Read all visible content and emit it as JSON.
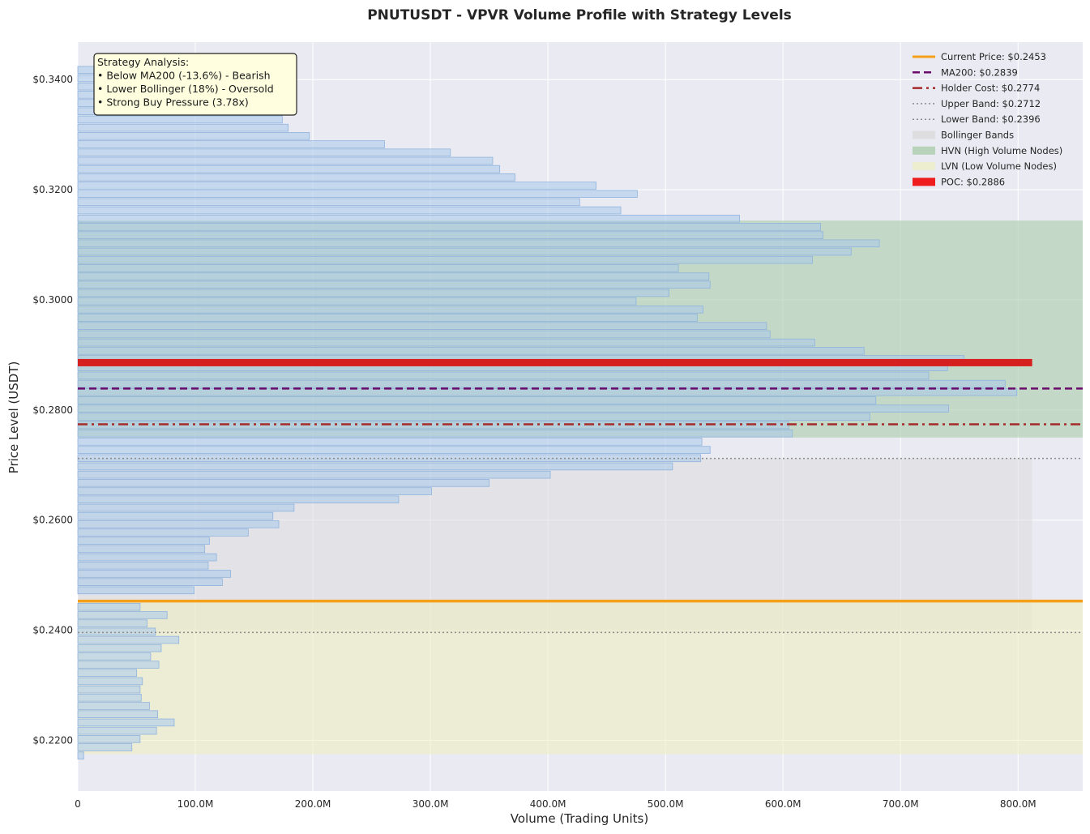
{
  "chart_data": {
    "type": "bar",
    "orientation": "horizontal",
    "title": "PNUTUSDT - VPVR Volume Profile with Strategy Levels",
    "xlabel": "Volume (Trading Units)",
    "ylabel": "Price Level (USDT)",
    "xlim": [
      0,
      855000000
    ],
    "ylim": [
      0.2108,
      0.3468
    ],
    "x_ticks": [
      {
        "value": 0,
        "label": "0"
      },
      {
        "value": 100000000,
        "label": "100.0M"
      },
      {
        "value": 200000000,
        "label": "200.0M"
      },
      {
        "value": 300000000,
        "label": "300.0M"
      },
      {
        "value": 400000000,
        "label": "400.0M"
      },
      {
        "value": 500000000,
        "label": "500.0M"
      },
      {
        "value": 600000000,
        "label": "600.0M"
      },
      {
        "value": 700000000,
        "label": "700.0M"
      },
      {
        "value": 800000000,
        "label": "800.0M"
      }
    ],
    "y_ticks": [
      {
        "value": 0.22,
        "label": "$0.2200"
      },
      {
        "value": 0.24,
        "label": "$0.2400"
      },
      {
        "value": 0.26,
        "label": "$0.2600"
      },
      {
        "value": 0.28,
        "label": "$0.2800"
      },
      {
        "value": 0.3,
        "label": "$0.3000"
      },
      {
        "value": 0.32,
        "label": "$0.3200"
      },
      {
        "value": 0.34,
        "label": "$0.3400"
      }
    ],
    "grid": true,
    "bins": [
      {
        "price": 0.21725,
        "volume": 5000000
      },
      {
        "price": 0.21875,
        "volume": 46000000
      },
      {
        "price": 0.22025,
        "volume": 53000000
      },
      {
        "price": 0.22175,
        "volume": 67000000
      },
      {
        "price": 0.22325,
        "volume": 82000000
      },
      {
        "price": 0.22475,
        "volume": 68000000
      },
      {
        "price": 0.22625,
        "volume": 61000000
      },
      {
        "price": 0.22775,
        "volume": 54000000
      },
      {
        "price": 0.22925,
        "volume": 53000000
      },
      {
        "price": 0.23075,
        "volume": 55000000
      },
      {
        "price": 0.23225,
        "volume": 50000000
      },
      {
        "price": 0.23375,
        "volume": 69000000
      },
      {
        "price": 0.23525,
        "volume": 62000000
      },
      {
        "price": 0.23675,
        "volume": 71000000
      },
      {
        "price": 0.23825,
        "volume": 86000000
      },
      {
        "price": 0.23975,
        "volume": 66000000
      },
      {
        "price": 0.24125,
        "volume": 59000000
      },
      {
        "price": 0.24275,
        "volume": 76000000
      },
      {
        "price": 0.24425,
        "volume": 53000000
      },
      {
        "price": 0.24575,
        "volume": 0
      },
      {
        "price": 0.24725,
        "volume": 99000000
      },
      {
        "price": 0.24875,
        "volume": 123000000
      },
      {
        "price": 0.25025,
        "volume": 130000000
      },
      {
        "price": 0.25175,
        "volume": 111000000
      },
      {
        "price": 0.25325,
        "volume": 118000000
      },
      {
        "price": 0.25475,
        "volume": 108000000
      },
      {
        "price": 0.25625,
        "volume": 112000000
      },
      {
        "price": 0.25775,
        "volume": 145000000
      },
      {
        "price": 0.25925,
        "volume": 171000000
      },
      {
        "price": 0.26075,
        "volume": 166000000
      },
      {
        "price": 0.26225,
        "volume": 184000000
      },
      {
        "price": 0.26375,
        "volume": 273000000
      },
      {
        "price": 0.26525,
        "volume": 301000000
      },
      {
        "price": 0.26675,
        "volume": 350000000
      },
      {
        "price": 0.26825,
        "volume": 402000000
      },
      {
        "price": 0.26975,
        "volume": 506000000
      },
      {
        "price": 0.27125,
        "volume": 530000000
      },
      {
        "price": 0.27275,
        "volume": 538000000
      },
      {
        "price": 0.27425,
        "volume": 531000000
      },
      {
        "price": 0.27575,
        "volume": 608000000
      },
      {
        "price": 0.27725,
        "volume": 605000000
      },
      {
        "price": 0.27875,
        "volume": 674000000
      },
      {
        "price": 0.28025,
        "volume": 741000000
      },
      {
        "price": 0.28175,
        "volume": 679000000
      },
      {
        "price": 0.28325,
        "volume": 799000000
      },
      {
        "price": 0.28475,
        "volume": 789000000
      },
      {
        "price": 0.28625,
        "volume": 724000000
      },
      {
        "price": 0.28775,
        "volume": 740000000
      },
      {
        "price": 0.28925,
        "volume": 754000000
      },
      {
        "price": 0.29075,
        "volume": 669000000
      },
      {
        "price": 0.29225,
        "volume": 627000000
      },
      {
        "price": 0.29375,
        "volume": 589000000
      },
      {
        "price": 0.29525,
        "volume": 586000000
      },
      {
        "price": 0.29675,
        "volume": 527000000
      },
      {
        "price": 0.29825,
        "volume": 532000000
      },
      {
        "price": 0.29975,
        "volume": 475000000
      },
      {
        "price": 0.30125,
        "volume": 503000000
      },
      {
        "price": 0.30275,
        "volume": 538000000
      },
      {
        "price": 0.30425,
        "volume": 537000000
      },
      {
        "price": 0.30575,
        "volume": 511000000
      },
      {
        "price": 0.30725,
        "volume": 625000000
      },
      {
        "price": 0.30875,
        "volume": 658000000
      },
      {
        "price": 0.31025,
        "volume": 682000000
      },
      {
        "price": 0.31175,
        "volume": 634000000
      },
      {
        "price": 0.31325,
        "volume": 632000000
      },
      {
        "price": 0.31475,
        "volume": 563000000
      },
      {
        "price": 0.31625,
        "volume": 462000000
      },
      {
        "price": 0.31775,
        "volume": 427000000
      },
      {
        "price": 0.31925,
        "volume": 476000000
      },
      {
        "price": 0.32075,
        "volume": 441000000
      },
      {
        "price": 0.32225,
        "volume": 372000000
      },
      {
        "price": 0.32375,
        "volume": 359000000
      },
      {
        "price": 0.32525,
        "volume": 353000000
      },
      {
        "price": 0.32675,
        "volume": 317000000
      },
      {
        "price": 0.32825,
        "volume": 261000000
      },
      {
        "price": 0.32975,
        "volume": 197000000
      },
      {
        "price": 0.33125,
        "volume": 179000000
      },
      {
        "price": 0.33275,
        "volume": 174000000
      },
      {
        "price": 0.33425,
        "volume": 166000000
      },
      {
        "price": 0.33575,
        "volume": 152000000
      },
      {
        "price": 0.33725,
        "volume": 140000000
      },
      {
        "price": 0.33875,
        "volume": 128000000
      },
      {
        "price": 0.34025,
        "volume": 110000000
      },
      {
        "price": 0.34175,
        "volume": 90000000
      }
    ],
    "zones": [
      {
        "name": "Bollinger Bands",
        "low": 0.2396,
        "high": 0.2712,
        "x_max": 812000000,
        "color": "#d9d9d9"
      },
      {
        "name": "HVN (High Volume Nodes)",
        "low": 0.275,
        "high": 0.3144,
        "color": "#a3c9a3"
      },
      {
        "name": "LVN (Low Volume Nodes)",
        "low": 0.2175,
        "high": 0.2453,
        "color": "#eeeec0"
      }
    ],
    "levels": [
      {
        "name": "Current Price",
        "value": 0.2453,
        "color": "#f5a01a",
        "style": "solid",
        "width": 3.5
      },
      {
        "name": "MA200",
        "value": 0.2839,
        "color": "#6a0a6a",
        "style": "dashed",
        "width": 2.5
      },
      {
        "name": "Holder Cost",
        "value": 0.2774,
        "color": "#a52a2a",
        "style": "dashdot",
        "width": 2.5
      },
      {
        "name": "Upper Band",
        "value": 0.2712,
        "color": "#8c8c8c",
        "style": "dotted",
        "width": 1.5
      },
      {
        "name": "Lower Band",
        "value": 0.2396,
        "color": "#8c8c8c",
        "style": "dotted",
        "width": 1.5
      }
    ],
    "poc": {
      "value": 0.2886,
      "volume": 812000000,
      "color": "#d62020"
    },
    "legend": {
      "placement": "top-right",
      "entries": [
        {
          "label": "Current Price: $0.2453",
          "kind": "line",
          "color": "#f5a01a",
          "style": "solid"
        },
        {
          "label": "MA200: $0.2839",
          "kind": "line",
          "color": "#6a0a6a",
          "style": "dashed"
        },
        {
          "label": "Holder Cost: $0.2774",
          "kind": "line",
          "color": "#a52a2a",
          "style": "dashdot"
        },
        {
          "label": "Upper Band: $0.2712",
          "kind": "line",
          "color": "#8c8c8c",
          "style": "dotted"
        },
        {
          "label": "Lower Band: $0.2396",
          "kind": "line",
          "color": "#8c8c8c",
          "style": "dotted"
        },
        {
          "label": "Bollinger Bands",
          "kind": "patch",
          "color": "#d9d9d9"
        },
        {
          "label": "HVN (High Volume Nodes)",
          "kind": "patch",
          "color": "#a3c9a3"
        },
        {
          "label": "LVN (Low Volume Nodes)",
          "kind": "patch",
          "color": "#eeeec0"
        },
        {
          "label": "POC: $0.2886",
          "kind": "patch",
          "color": "#ee1c1c"
        }
      ]
    },
    "annotation": {
      "placement": "top-left",
      "lines": [
        "Strategy Analysis:",
        "• Below MA200 (-13.6%) - Bearish",
        "• Lower Bollinger (18%) - Oversold",
        "• Strong Buy Pressure (3.78x)"
      ]
    },
    "colors": {
      "plot_background": "#eaeaf2",
      "grid": "#ffffff",
      "bar_fill": "#aecbea",
      "bar_edge": "#8fb3de"
    }
  }
}
